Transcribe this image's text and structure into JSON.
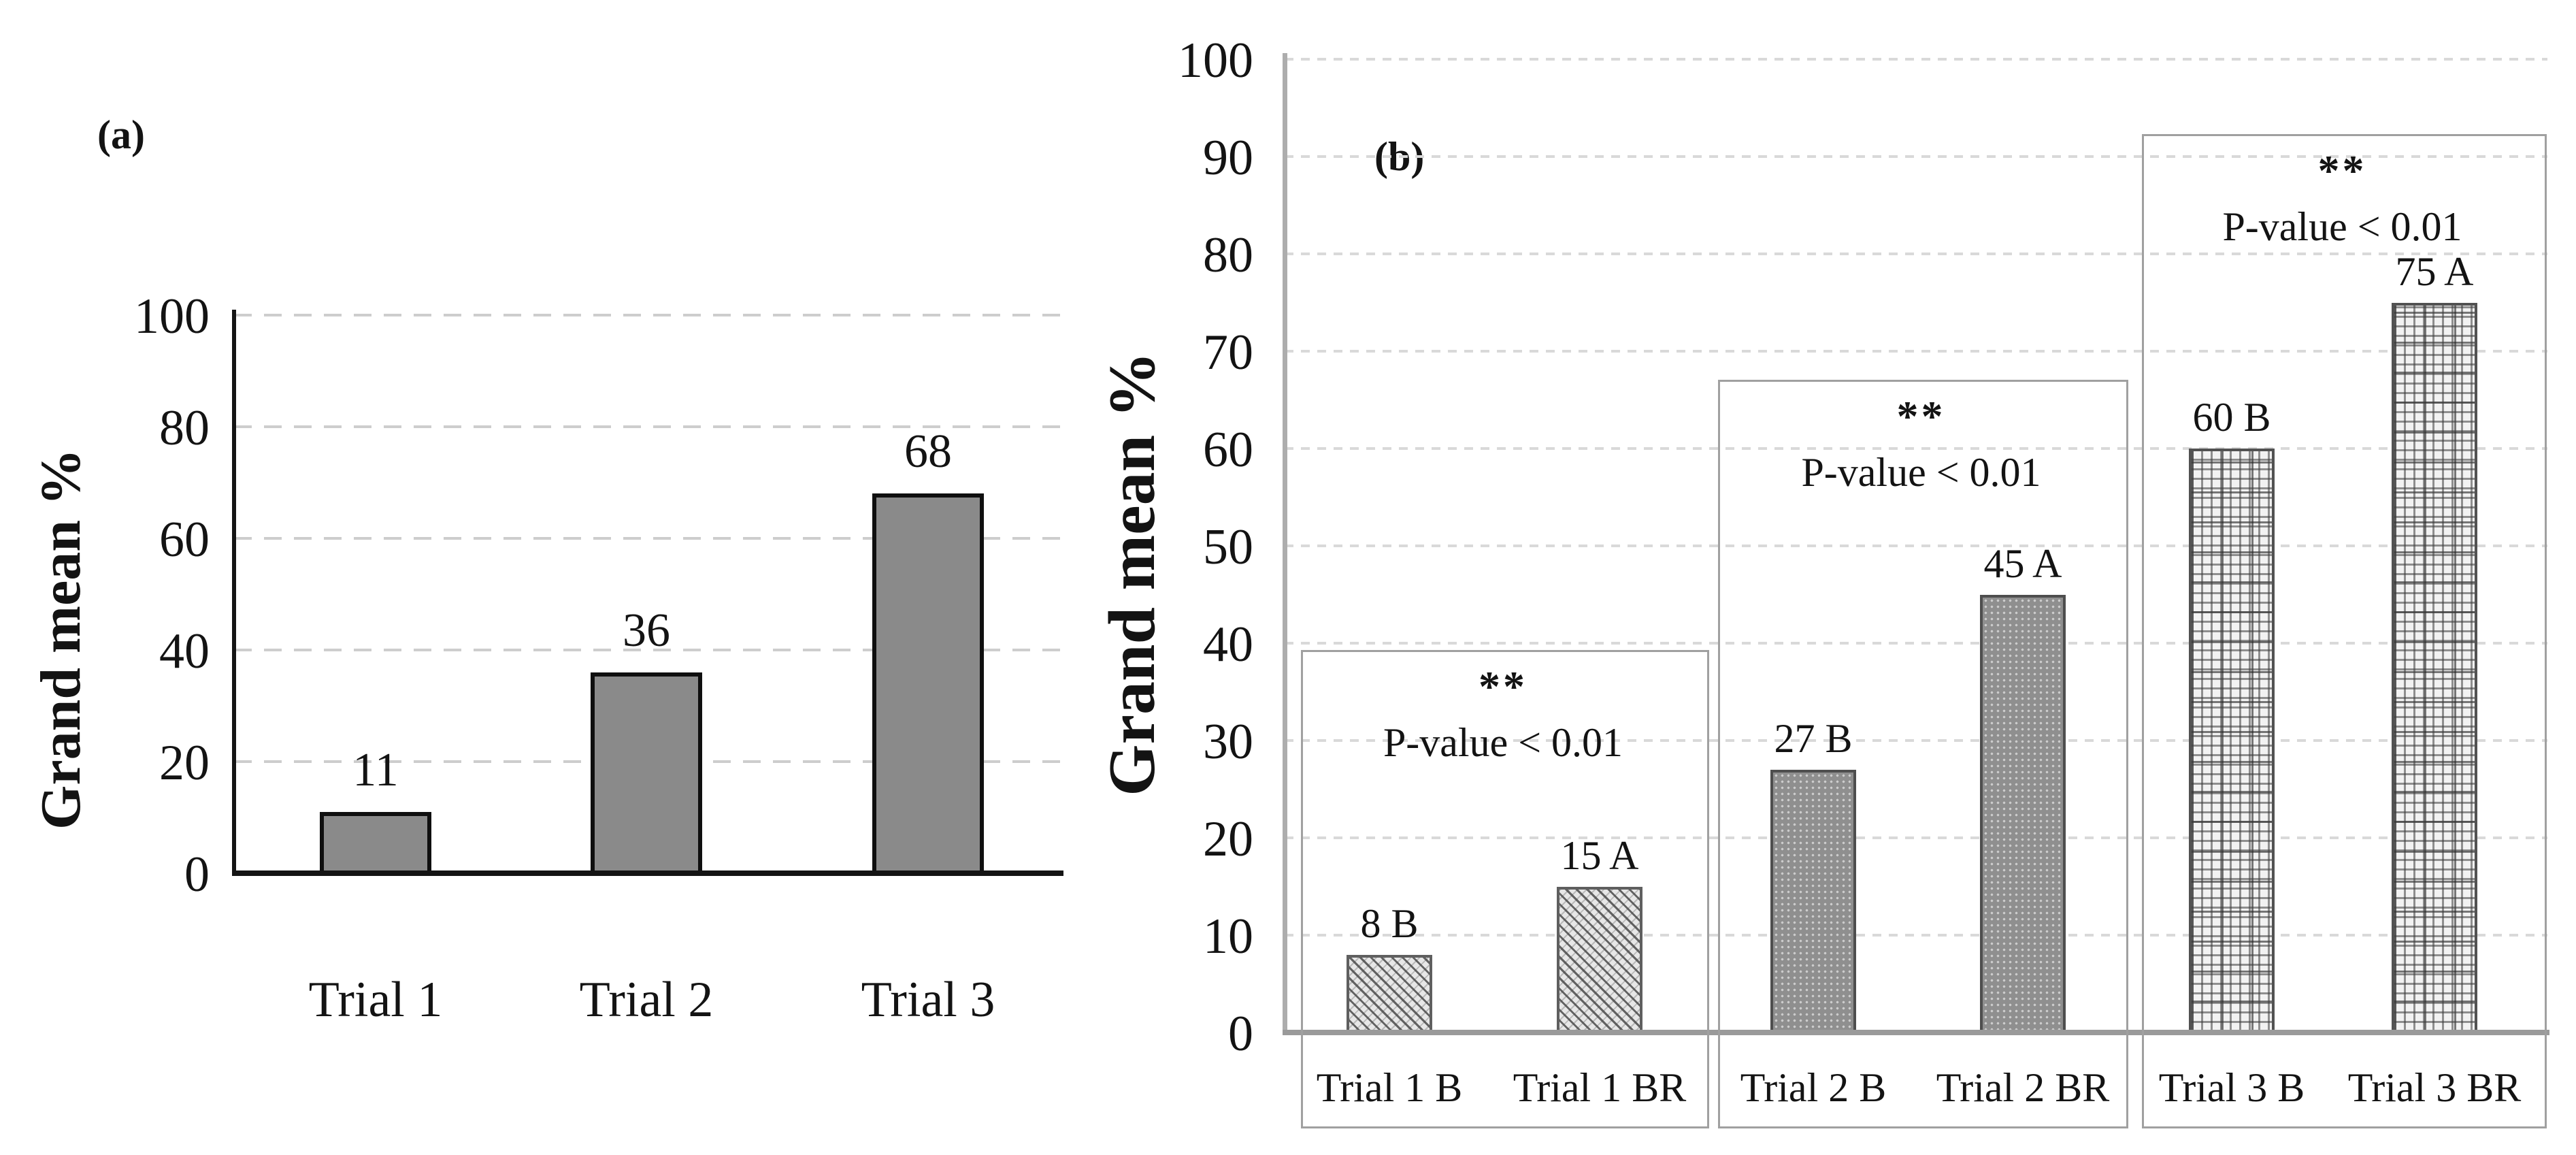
{
  "chart_data": [
    {
      "id": "a",
      "type": "bar",
      "panel_label": "(a)",
      "ylabel": "Grand mean %",
      "xlabel": "",
      "ylim": [
        0,
        100
      ],
      "yticks": [
        0,
        20,
        40,
        60,
        80,
        100
      ],
      "grid": "horizontal-dashed",
      "legend": "none",
      "categories": [
        "Trial 1",
        "Trial 2",
        "Trial 3"
      ],
      "values": [
        11,
        36,
        68
      ],
      "bar_labels": [
        "11",
        "36",
        "68"
      ],
      "bar_pattern": [
        "solid",
        "solid",
        "solid"
      ],
      "colors": {
        "bar_fill": "#8a8a8a",
        "bar_border": "#0f0f0f",
        "axis": "#141414",
        "grid": "#cdcdcd",
        "text": "#131313"
      }
    },
    {
      "id": "b",
      "type": "bar",
      "panel_label": "(b)",
      "ylabel": "Grand mean %",
      "xlabel": "",
      "ylim": [
        0,
        100
      ],
      "yticks": [
        0,
        10,
        20,
        30,
        40,
        50,
        60,
        70,
        80,
        90,
        100
      ],
      "grid": "horizontal-dashed",
      "legend": "none",
      "categories": [
        "Trial 1 B",
        "Trial 1 BR",
        "Trial 2 B",
        "Trial 2 BR",
        "Trial 3 B",
        "Trial 3 BR"
      ],
      "values": [
        8,
        15,
        27,
        45,
        60,
        75
      ],
      "bar_labels": [
        "8 B",
        "15 A",
        "27 B",
        "45 A",
        "60 B",
        "75 A"
      ],
      "bar_pattern": [
        "diagonal-hatch",
        "diagonal-hatch",
        "fine-dots",
        "fine-dots",
        "square-grid",
        "square-grid"
      ],
      "annotations": [
        {
          "pair": [
            "Trial 1 B",
            "Trial 1 BR"
          ],
          "stars": "**",
          "text": "P-value < 0.01"
        },
        {
          "pair": [
            "Trial 2 B",
            "Trial 2 BR"
          ],
          "stars": "**",
          "text": "P-value < 0.01"
        },
        {
          "pair": [
            "Trial 3 B",
            "Trial 3 BR"
          ],
          "stars": "**",
          "text": "P-value < 0.01"
        }
      ],
      "colors": {
        "axis": "#a3a3a3",
        "grid": "#d9d9d9",
        "box_border": "#a0a0a0",
        "hatch_bar_bg": "#e7e7e7",
        "dot_bar_bg": "#8f8f8f",
        "grid_bar_bg": "#f2f2f2",
        "text": "#131313"
      }
    }
  ]
}
